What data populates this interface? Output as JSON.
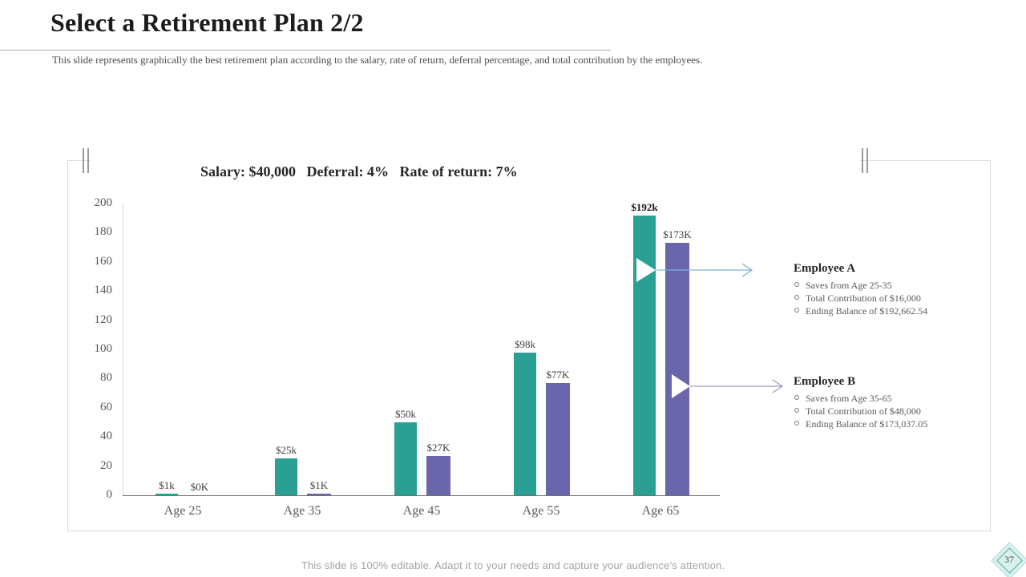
{
  "slide": {
    "title": "Select a Retirement Plan 2/2",
    "subtitle": "This slide represents graphically the best retirement plan according to the salary, rate of return, deferral percentage, and total contribution by the employees.",
    "footer": "This slide is 100% editable. Adapt it to your needs and capture your audience's attention.",
    "page_number": "37"
  },
  "chart_data": {
    "type": "bar",
    "title": "Salary: $40,000   Deferral: 4%   Rate of return: 7%",
    "categories": [
      "Age 25",
      "Age 35",
      "Age 45",
      "Age 55",
      "Age 65"
    ],
    "series": [
      {
        "name": "Employee A",
        "color": "#2aa094",
        "values": [
          1,
          25,
          50,
          98,
          192
        ],
        "labels": [
          "$1k",
          "$25k",
          "$50k",
          "$98k",
          "$192k"
        ]
      },
      {
        "name": "Employee B",
        "color": "#6a66ab",
        "values": [
          0,
          1,
          27,
          77,
          173
        ],
        "labels": [
          "$0K",
          "$1K",
          "$27K",
          "$77K",
          "$173K"
        ]
      }
    ],
    "xlabel": "",
    "ylabel": "",
    "ylim": [
      0,
      200
    ],
    "yticks": [
      0,
      20,
      40,
      60,
      80,
      100,
      120,
      140,
      160,
      180,
      200
    ],
    "grid": false,
    "legend_position": "right-callouts",
    "emphasized_label": "$192k"
  },
  "callouts": {
    "employee_a": {
      "heading": "Employee A",
      "bullets": [
        "Saves from Age 25-35",
        "Total Contribution of $16,000",
        "Ending Balance of $192,662.54"
      ]
    },
    "employee_b": {
      "heading": "Employee B",
      "bullets": [
        "Saves from Age 35-65",
        "Total Contribution of $48,000",
        "Ending Balance of $173,037.05"
      ]
    }
  },
  "colors": {
    "series_a": "#2aa094",
    "series_b": "#6a66ab",
    "arrow_a": "#7fb4d6",
    "arrow_b": "#9c9dc2",
    "panel_border": "#d9d9d9",
    "axis_line": "#737373",
    "diamond_fill": "#d9f0ed",
    "diamond_stroke": "#4faea3"
  }
}
